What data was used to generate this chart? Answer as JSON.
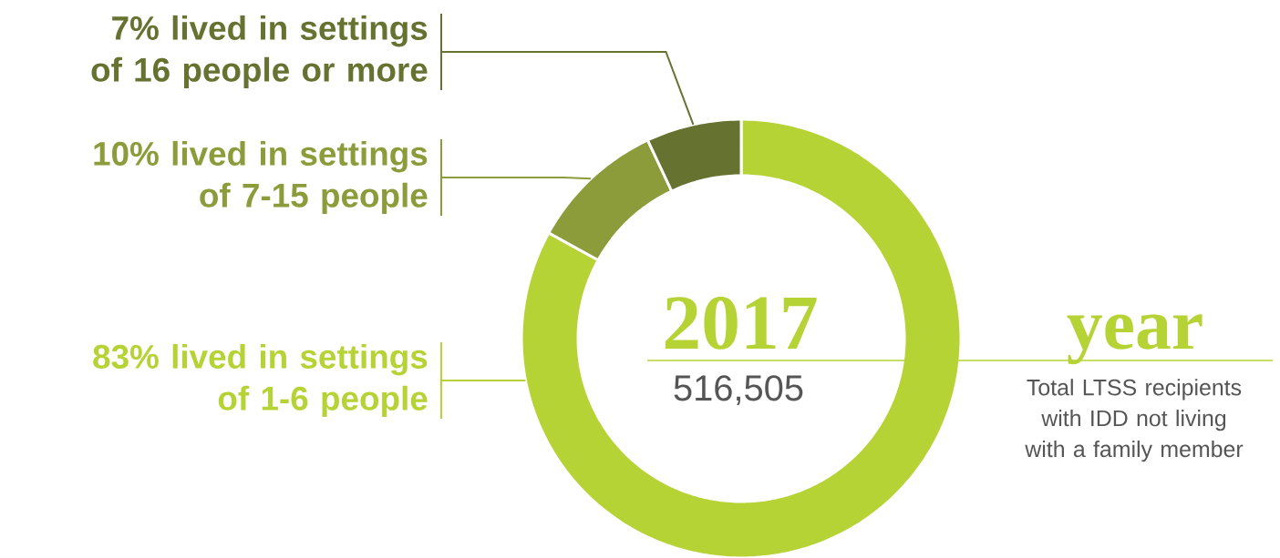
{
  "chart_data": {
    "type": "donut",
    "title": "2017",
    "categories": [
      "83% lived in settings of 1-6 people",
      "10% lived in settings of 7-15 people",
      "7% lived in settings of 16 people or more"
    ],
    "values": [
      83,
      10,
      7
    ],
    "colors": [
      "#b5d334",
      "#8c9c3a",
      "#667230"
    ],
    "legend": "left",
    "annotations": [
      "year",
      "516,505",
      "Total LTSS recipients with IDD not living with a family member"
    ]
  }
}
